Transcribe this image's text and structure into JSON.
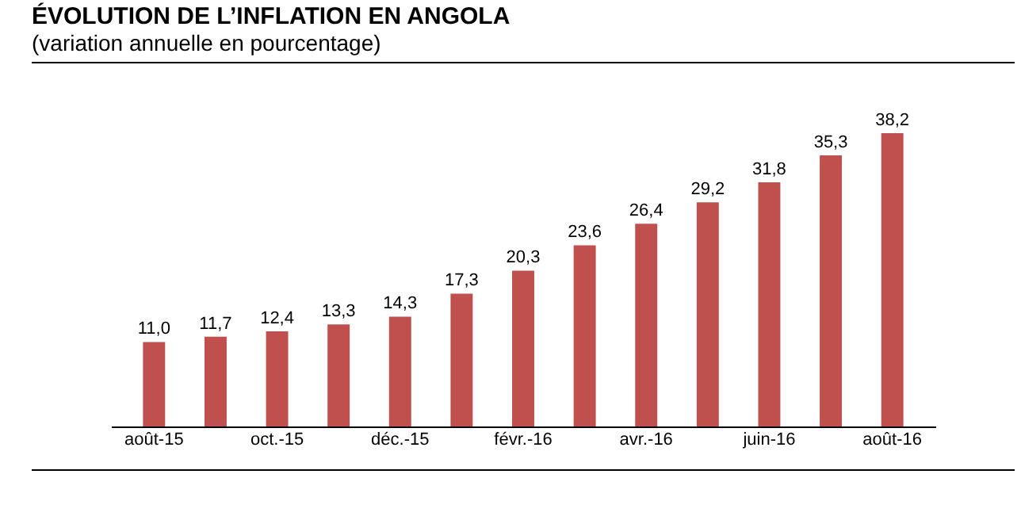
{
  "chart_data": {
    "type": "bar",
    "title": "ÉVOLUTION DE L’INFLATION EN ANGOLA",
    "subtitle": "(variation annuelle en pourcentage)",
    "categories": [
      "août-15",
      null,
      "oct.-15",
      null,
      "déc.-15",
      null,
      "févr.-16",
      null,
      "avr.-16",
      null,
      "juin-16",
      null,
      "août-16"
    ],
    "values": [
      11.0,
      11.7,
      12.4,
      13.3,
      14.3,
      17.3,
      20.3,
      23.6,
      26.4,
      29.2,
      31.8,
      35.3,
      38.2
    ],
    "value_labels": [
      "11,0",
      "11,7",
      "12,4",
      "13,3",
      "14,3",
      "17,3",
      "20,3",
      "23,6",
      "26,4",
      "29,2",
      "31,8",
      "35,3",
      "38,2"
    ],
    "color": "#c0504d",
    "tick_labels": "x",
    "grid": false
  }
}
